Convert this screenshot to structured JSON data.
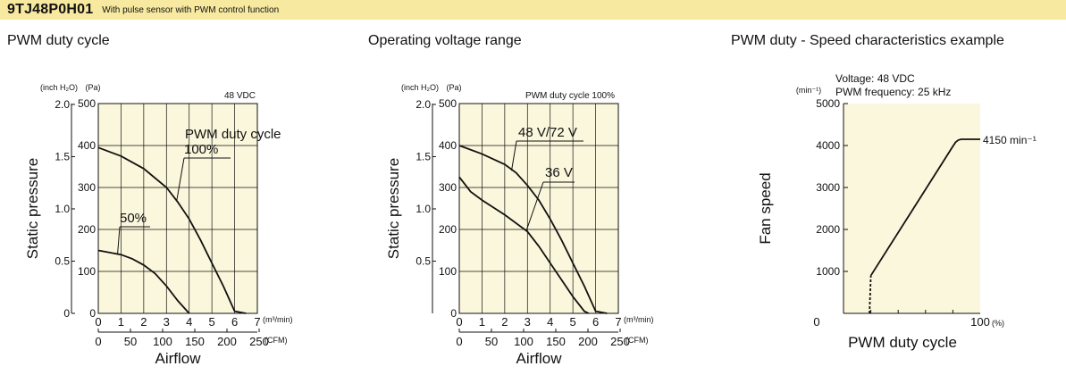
{
  "header": {
    "model": "9TJ48P0H01",
    "subtitle": "With pulse sensor with PWM control function",
    "banner_color": "#f7e9a0"
  },
  "chart_data": [
    {
      "type": "line",
      "title": "PWM duty cycle",
      "note": "48 VDC",
      "xlabel": "Airflow",
      "ylabel": "Static pressure",
      "x_unit": "(m³/min)",
      "x2_unit": "(CFM)",
      "y_unit": "(Pa)",
      "y2_unit": "(inch H₂O)",
      "xlim": [
        0,
        7
      ],
      "ylim": [
        0,
        500
      ],
      "x_ticks": [
        "0",
        "1",
        "2",
        "3",
        "4",
        "5",
        "6",
        "7"
      ],
      "y_ticks": [
        "0",
        "100",
        "200",
        "300",
        "400",
        "500"
      ],
      "x2_ticks": [
        "0",
        "50",
        "100",
        "150",
        "200",
        "250"
      ],
      "y2_ticks": [
        "0",
        "0.5",
        "1.0",
        "1.5",
        "2.0"
      ],
      "annotation": "PWM duty cycle",
      "plot_bg": "#fbf7dc",
      "series": [
        {
          "name": "100%",
          "x": [
            0,
            1,
            2,
            3,
            3.5,
            4,
            4.5,
            5,
            5.5,
            6,
            6.5
          ],
          "y": [
            395,
            375,
            345,
            300,
            265,
            225,
            175,
            120,
            65,
            5,
            0
          ]
        },
        {
          "name": "50%",
          "x": [
            0,
            0.5,
            1,
            1.5,
            2,
            2.5,
            3,
            3.5,
            4
          ],
          "y": [
            150,
            145,
            140,
            130,
            115,
            95,
            65,
            30,
            0
          ]
        }
      ]
    },
    {
      "type": "line",
      "title": "Operating voltage range",
      "note": "PWM duty cycle 100%",
      "xlabel": "Airflow",
      "ylabel": "Static pressure",
      "x_unit": "(m³/min)",
      "x2_unit": "(CFM)",
      "y_unit": "(Pa)",
      "y2_unit": "(inch H₂O)",
      "xlim": [
        0,
        7
      ],
      "ylim": [
        0,
        500
      ],
      "x_ticks": [
        "0",
        "1",
        "2",
        "3",
        "4",
        "5",
        "6",
        "7"
      ],
      "y_ticks": [
        "0",
        "100",
        "200",
        "300",
        "400",
        "500"
      ],
      "x2_ticks": [
        "0",
        "50",
        "100",
        "150",
        "200",
        "250"
      ],
      "y2_ticks": [
        "0.5",
        "1.0",
        "1.5",
        "2.0"
      ],
      "plot_bg": "#fbf7dc",
      "series": [
        {
          "name": "48 V/72 V",
          "x": [
            0,
            1,
            2,
            2.5,
            3,
            3.5,
            4,
            4.5,
            5,
            5.5,
            6,
            6.5
          ],
          "y": [
            400,
            380,
            355,
            335,
            305,
            270,
            225,
            175,
            120,
            65,
            5,
            0
          ]
        },
        {
          "name": "36 V",
          "x": [
            0,
            0.5,
            1,
            2,
            3,
            3.5,
            4,
            4.5,
            5,
            5.5,
            5.7
          ],
          "y": [
            325,
            290,
            270,
            235,
            195,
            160,
            120,
            80,
            40,
            5,
            0
          ]
        }
      ]
    },
    {
      "type": "line",
      "title": "PWM duty - Speed characteristics example",
      "note_lines": [
        "Voltage: 48 VDC",
        "PWM frequency: 25 kHz"
      ],
      "xlabel": "PWM duty cycle",
      "ylabel": "Fan speed",
      "x_unit": "(%)",
      "y_unit": "(min⁻¹)",
      "xlim": [
        0,
        100
      ],
      "ylim": [
        0,
        5000
      ],
      "x_ticks": [
        "0",
        "100"
      ],
      "y_ticks": [
        "1000",
        "2000",
        "3000",
        "4000",
        "5000"
      ],
      "annotation": "4150 min⁻¹",
      "plot_bg": "#fbf7dc",
      "series": [
        {
          "name": "",
          "x": [
            20,
            80,
            82,
            84,
            86,
            100
          ],
          "y": [
            900,
            3980,
            4080,
            4130,
            4150,
            4150
          ]
        }
      ],
      "dashed": {
        "x": [
          19,
          20
        ],
        "y": [
          0,
          900
        ]
      }
    }
  ]
}
